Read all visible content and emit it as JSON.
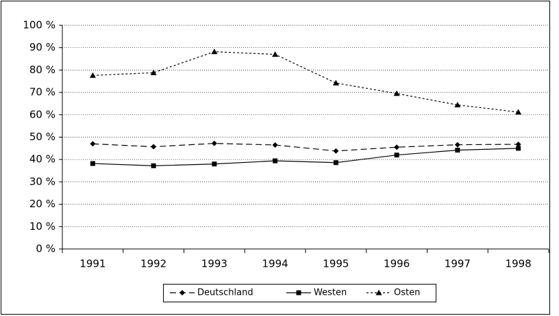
{
  "chart_data": {
    "type": "line",
    "categories": [
      "1991",
      "1992",
      "1993",
      "1994",
      "1995",
      "1996",
      "1997",
      "1998"
    ],
    "series": [
      {
        "name": "Deutschland",
        "color": "#000000",
        "dash": "long",
        "marker": "diamond",
        "values": [
          47,
          45.7,
          47.2,
          46.5,
          43.8,
          45.5,
          46.6,
          46.8
        ]
      },
      {
        "name": "Westen",
        "color": "#000000",
        "dash": "solid",
        "marker": "square",
        "values": [
          38.2,
          37.2,
          38,
          39.4,
          38.6,
          42,
          44.2,
          45
        ]
      },
      {
        "name": "Osten",
        "color": "#000000",
        "dash": "short",
        "marker": "triangle",
        "values": [
          77.6,
          78.8,
          88.2,
          87,
          74.2,
          69.5,
          64.4,
          61.2
        ]
      }
    ],
    "ylim": [
      0,
      100
    ],
    "yticks": [
      {
        "value": 0,
        "label": "0 %"
      },
      {
        "value": 10,
        "label": "10 %"
      },
      {
        "value": 20,
        "label": "20 %"
      },
      {
        "value": 30,
        "label": "30 %"
      },
      {
        "value": 40,
        "label": "40 %"
      },
      {
        "value": 50,
        "label": "50 %"
      },
      {
        "value": 60,
        "label": "60 %"
      },
      {
        "value": 70,
        "label": "70 %"
      },
      {
        "value": 80,
        "label": "80 %"
      },
      {
        "value": 90,
        "label": "90 %"
      },
      {
        "value": 100,
        "label": "100 %"
      }
    ],
    "grid": true,
    "legend": "bottom"
  }
}
